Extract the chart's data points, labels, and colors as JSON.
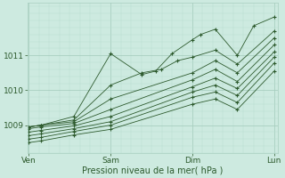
{
  "title": "",
  "xlabel": "Pression niveau de la mer( hPa )",
  "background_color": "#cdeae0",
  "plot_bg_color": "#cdeae0",
  "grid_major_color": "#a8cfc0",
  "grid_minor_color": "#b8ddd0",
  "line_color": "#2d5a2d",
  "xtick_labels": [
    "Ven",
    "Sam",
    "Dim",
    "Lun"
  ],
  "xtick_positions": [
    0,
    1,
    2,
    3
  ],
  "ytick_values": [
    1009,
    1010,
    1011
  ],
  "ylim": [
    1008.2,
    1012.5
  ],
  "xlim": [
    -0.02,
    3.05
  ],
  "lines": [
    {
      "x": [
        0.0,
        0.15,
        0.55,
        1.0,
        1.38,
        1.55,
        1.75,
        2.0,
        2.1,
        2.28,
        2.55,
        2.75,
        3.0
      ],
      "y": [
        1008.95,
        1009.0,
        1009.25,
        1011.05,
        1010.45,
        1010.55,
        1011.05,
        1011.45,
        1011.6,
        1011.75,
        1011.0,
        1011.85,
        1012.1
      ]
    },
    {
      "x": [
        0.0,
        0.15,
        0.55,
        1.0,
        1.38,
        1.62,
        1.82,
        2.0,
        2.28,
        2.55,
        3.0
      ],
      "y": [
        1008.95,
        1009.0,
        1009.15,
        1010.15,
        1010.5,
        1010.6,
        1010.85,
        1010.95,
        1011.15,
        1010.75,
        1011.7
      ]
    },
    {
      "x": [
        0.0,
        0.15,
        0.55,
        1.0,
        2.0,
        2.28,
        2.55,
        3.0
      ],
      "y": [
        1008.95,
        1009.0,
        1009.1,
        1009.75,
        1010.5,
        1010.85,
        1010.5,
        1011.5
      ]
    },
    {
      "x": [
        0.0,
        0.15,
        0.55,
        1.0,
        2.0,
        2.28,
        2.55,
        3.0
      ],
      "y": [
        1008.9,
        1008.95,
        1009.05,
        1009.45,
        1010.3,
        1010.6,
        1010.25,
        1011.3
      ]
    },
    {
      "x": [
        0.0,
        0.15,
        0.55,
        1.0,
        2.0,
        2.28,
        2.55,
        3.0
      ],
      "y": [
        1008.8,
        1008.85,
        1008.98,
        1009.25,
        1010.1,
        1010.35,
        1010.05,
        1011.1
      ]
    },
    {
      "x": [
        0.0,
        0.15,
        0.55,
        1.0,
        2.0,
        2.28,
        2.55,
        3.0
      ],
      "y": [
        1008.7,
        1008.75,
        1008.9,
        1009.1,
        1009.95,
        1010.15,
        1009.85,
        1010.95
      ]
    },
    {
      "x": [
        0.0,
        0.15,
        0.55,
        1.0,
        2.0,
        2.28,
        2.55,
        3.0
      ],
      "y": [
        1008.6,
        1008.65,
        1008.82,
        1009.0,
        1009.8,
        1009.95,
        1009.65,
        1010.78
      ]
    },
    {
      "x": [
        0.0,
        0.15,
        0.55,
        1.0,
        2.0,
        2.28,
        2.55,
        3.0
      ],
      "y": [
        1008.5,
        1008.55,
        1008.72,
        1008.88,
        1009.6,
        1009.75,
        1009.45,
        1010.55
      ]
    }
  ]
}
